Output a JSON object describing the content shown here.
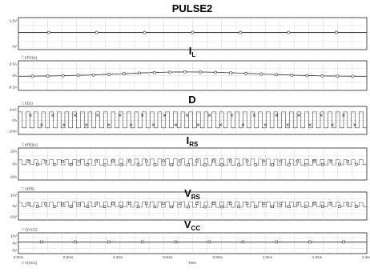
{
  "chart_data": [
    {
      "type": "line",
      "title_main": "PULSE2",
      "title_sub": "",
      "header_label": "",
      "y_ticks": [
        "1.0V",
        "0V"
      ],
      "ylim": [
        0,
        1.0
      ],
      "trace": {
        "kind": "flat",
        "level": 0.1
      },
      "marker_style": "circle",
      "marker_count": 7,
      "color": "#333333"
    },
    {
      "type": "line",
      "title_main": "I",
      "title_sub": "L",
      "header_label": "I(R3)(x)",
      "y_ticks": [
        "0.5A",
        "0A",
        "-0.5A"
      ],
      "ylim": [
        -0.5,
        0.5
      ],
      "trace": {
        "kind": "hump",
        "base": -0.08,
        "amp": 0.42,
        "center": 0.49,
        "width": 0.27
      },
      "marker_style": "circle",
      "marker_count": 22,
      "color": "#444444"
    },
    {
      "type": "line",
      "title_main": "D",
      "title_sub": "",
      "header_label": "I(D1)",
      "y_ticks": [
        "1mA",
        "0A",
        "-1mA"
      ],
      "ylim": [
        -1,
        1
      ],
      "trace": {
        "kind": "osc",
        "lo": -0.75,
        "hi": 0.85,
        "env": 0
      },
      "marker_style": "x",
      "marker_count": 30,
      "color": "#333333"
    },
    {
      "type": "line",
      "title_main": "I",
      "title_sub": "RS",
      "header_label": "I(R5)(A)",
      "y_ticks": [
        "10A",
        "0A",
        "-10A"
      ],
      "ylim": [
        -10,
        10
      ],
      "trace": {
        "kind": "osc",
        "lo": -0.05,
        "hi": 0.35,
        "env": 0.35
      },
      "marker_style": "square",
      "marker_count": 40,
      "color": "#555555"
    },
    {
      "type": "line",
      "title_main": "V",
      "title_sub": "RS",
      "header_label": "V(R5)",
      "y_ticks": [
        "10V",
        "0V",
        "-10V"
      ],
      "ylim": [
        -10,
        10
      ],
      "trace": {
        "kind": "osc",
        "lo": -0.05,
        "hi": 0.35,
        "env": 0.4
      },
      "marker_style": "square",
      "marker_count": 40,
      "color": "#555555"
    },
    {
      "type": "line",
      "title_main": "V",
      "title_sub": "CC",
      "header_label": "V(VCC)",
      "y_ticks": [
        "10V",
        "8V",
        "6V"
      ],
      "ylim": [
        6,
        10
      ],
      "trace": {
        "kind": "flat",
        "level": 0.2
      },
      "marker_style": "square",
      "marker_count": 10,
      "color": "#333333"
    }
  ],
  "x_axis": {
    "ticks": [
      "0.0ms",
      "0.2ms",
      "0.4ms",
      "0.6ms",
      "0.8ms",
      "1.0ms",
      "1.2ms",
      "1.4ms"
    ],
    "label": "Time",
    "footer_label": "V(VCC)"
  },
  "grid": true
}
